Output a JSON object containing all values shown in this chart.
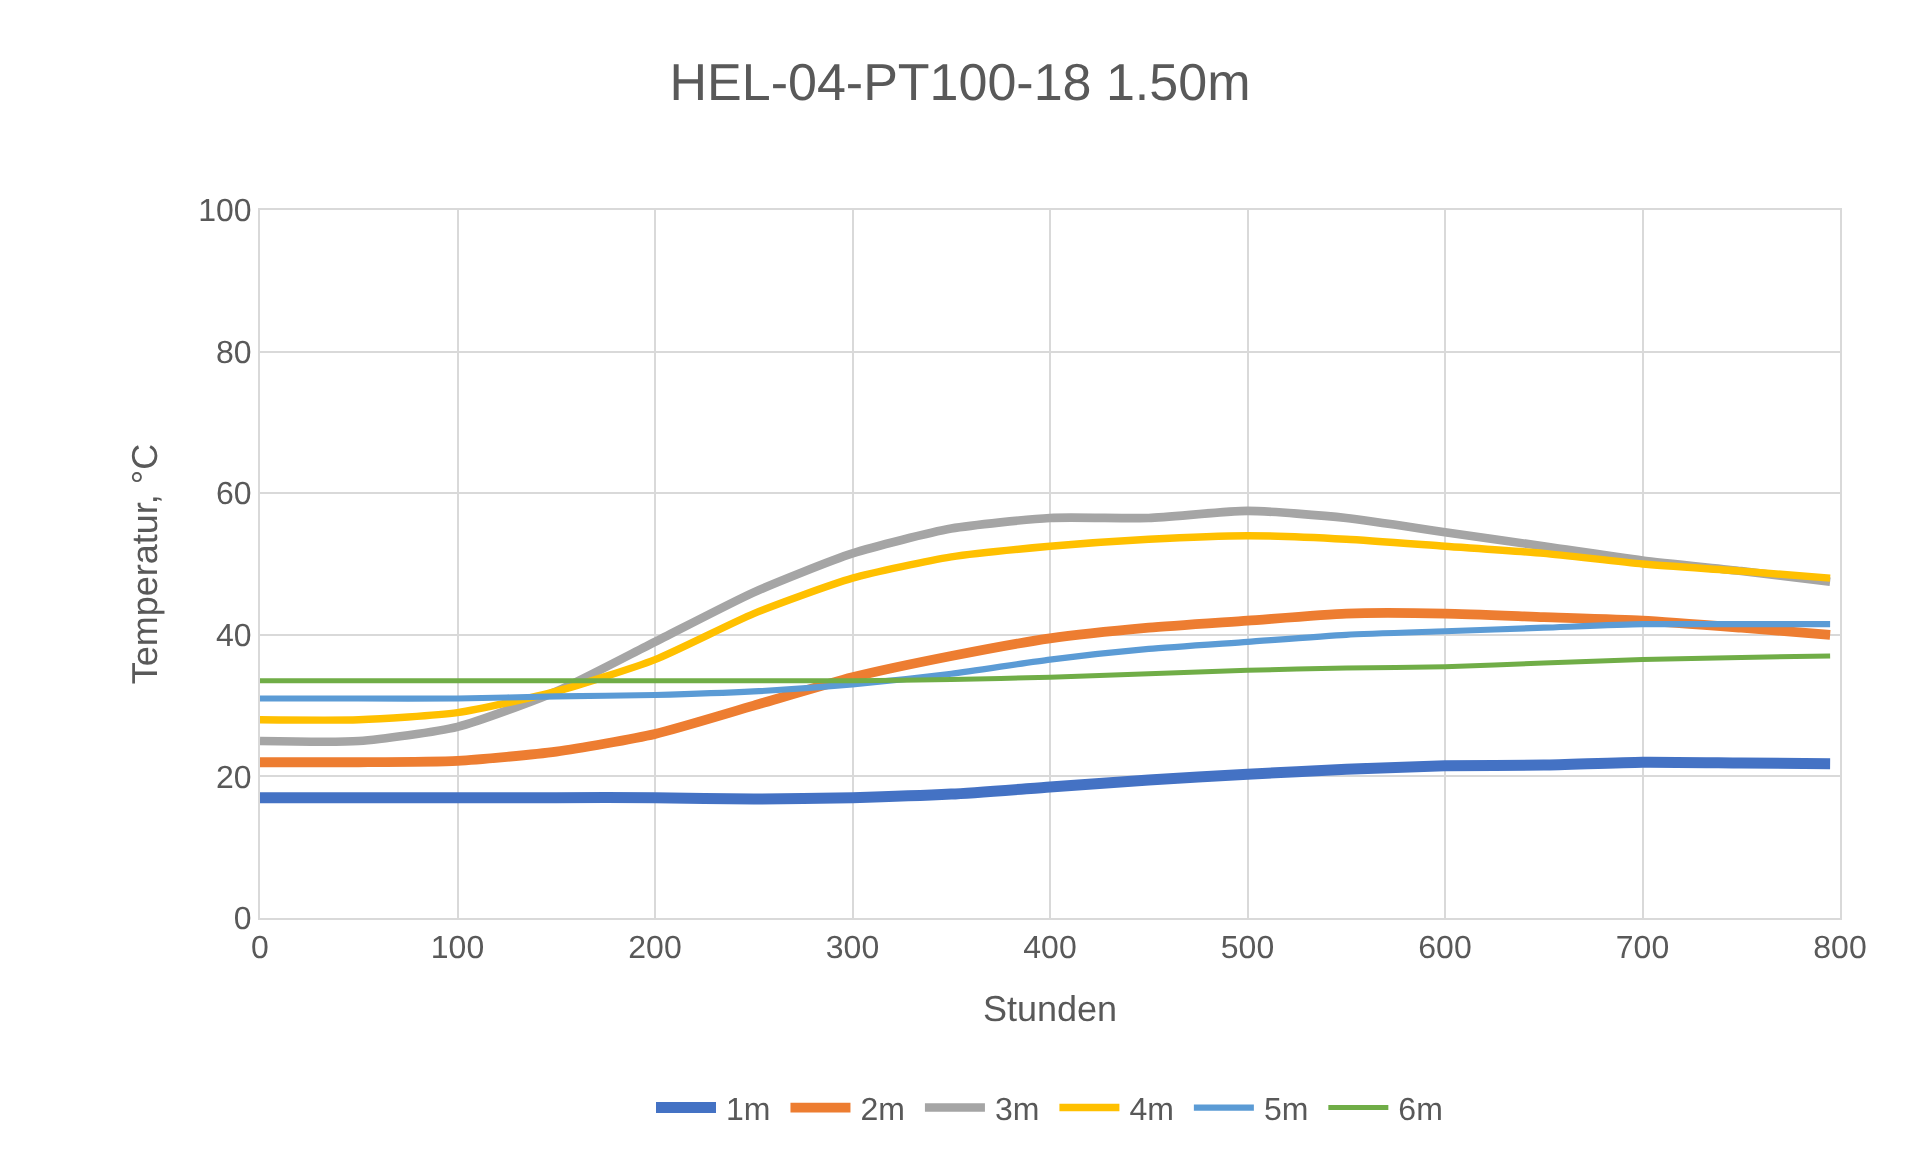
{
  "chart_data": {
    "type": "line",
    "title": "HEL-04-PT100-18 1.50m",
    "xlabel": "Stunden",
    "ylabel": "Temperatur, °C",
    "x": [
      0,
      50,
      100,
      150,
      200,
      250,
      300,
      350,
      400,
      450,
      500,
      550,
      600,
      650,
      700,
      750,
      795
    ],
    "series": [
      {
        "name": "1m",
        "color": "#4472c4",
        "values": [
          17,
          17,
          17,
          17,
          17,
          16.8,
          17,
          17.5,
          18.5,
          19.5,
          20.3,
          21,
          21.5,
          21.6,
          22,
          21.9,
          21.8
        ]
      },
      {
        "name": "2m",
        "color": "#ed7d31",
        "values": [
          22,
          22,
          22.2,
          23.5,
          26,
          30,
          34,
          37,
          39.5,
          41,
          42,
          43,
          43,
          42.5,
          42,
          41,
          40
        ]
      },
      {
        "name": "3m",
        "color": "#a5a5a5",
        "values": [
          25,
          25,
          27,
          32,
          39,
          46,
          51.5,
          55,
          56.5,
          56.5,
          57.5,
          56.5,
          54.5,
          52.5,
          50.5,
          49,
          47.5
        ]
      },
      {
        "name": "4m",
        "color": "#ffc000",
        "values": [
          28,
          28,
          29,
          32,
          36.5,
          43,
          48,
          51,
          52.5,
          53.5,
          54,
          53.5,
          52.5,
          51.5,
          50,
          49,
          48
        ]
      },
      {
        "name": "5m",
        "color": "#5b9bd5",
        "values": [
          31,
          31,
          31,
          31.3,
          31.5,
          32,
          33,
          34.5,
          36.5,
          38,
          39,
          40,
          40.5,
          41,
          41.5,
          41.5,
          41.5
        ]
      },
      {
        "name": "6m",
        "color": "#70ad47",
        "values": [
          33.5,
          33.5,
          33.5,
          33.5,
          33.5,
          33.5,
          33.5,
          33.7,
          34,
          34.5,
          35,
          35.3,
          35.5,
          36,
          36.5,
          36.8,
          37
        ]
      }
    ],
    "xlim": [
      0,
      800
    ],
    "xticks": [
      0,
      100,
      200,
      300,
      400,
      500,
      600,
      700,
      800
    ],
    "ylim": [
      0,
      100
    ],
    "yticks": [
      0,
      20,
      40,
      60,
      80,
      100
    ],
    "grid": true,
    "legend": "bottom",
    "marker": "none",
    "line_style": "solid"
  }
}
